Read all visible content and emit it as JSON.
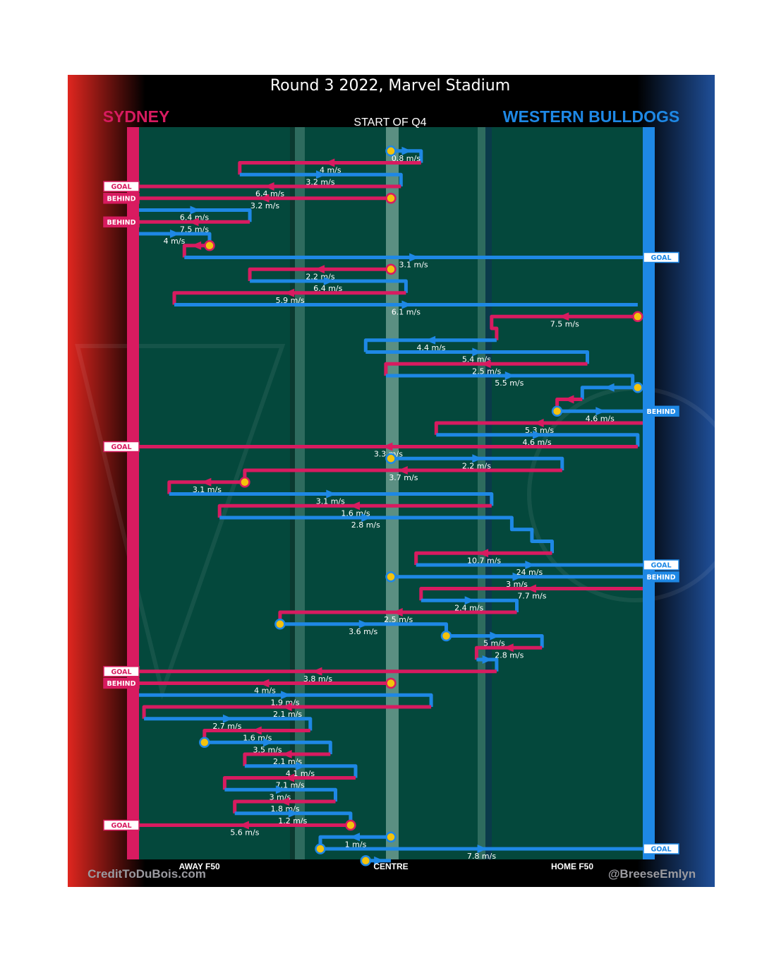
{
  "header": {
    "title": "Round 3 2022, Marvel Stadium",
    "home_team": "SYDNEY",
    "away_team": "WESTERN BULLDOGS",
    "quarter_label": "START OF Q4"
  },
  "footer": {
    "left_credit": "CreditToDuBois.com",
    "right_credit": "@BreeseEmlyn"
  },
  "colors": {
    "sydney": "#d81b60",
    "bulldogs": "#1e88e5",
    "field": "#04483c",
    "stoppage": "#f4c20d"
  },
  "chart_data": {
    "type": "chain-flow",
    "title": "Round 3 2022, Marvel Stadium",
    "subtitle": "START OF Q4",
    "x_axis": {
      "range": [
        0,
        100
      ],
      "labels": [
        {
          "x": 12,
          "label": "AWAY F50"
        },
        {
          "x": 50,
          "label": "CENTRE"
        },
        {
          "x": 86,
          "label": "HOME F50"
        }
      ]
    },
    "chains": [
      {
        "team": "BUL",
        "path": [
          [
            50,
            1
          ],
          [
            56,
            1
          ],
          [
            56,
            2
          ]
        ],
        "speed": "0.8 m/s",
        "start_marker": true
      },
      {
        "team": "SYD",
        "path": [
          [
            56,
            2
          ],
          [
            20,
            2
          ],
          [
            20,
            3
          ]
        ],
        "speed": "4 m/s"
      },
      {
        "team": "BUL",
        "path": [
          [
            20,
            3
          ],
          [
            52,
            3
          ],
          [
            52,
            4
          ]
        ],
        "speed": "3.2 m/s"
      },
      {
        "team": "SYD",
        "path": [
          [
            52,
            4
          ],
          [
            0,
            4
          ]
        ],
        "speed": "6.4 m/s",
        "outcome": "GOAL"
      },
      {
        "team": "SYD",
        "path": [
          [
            50,
            5
          ],
          [
            0,
            5
          ]
        ],
        "speed": "3.2 m/s",
        "outcome": "BEHIND",
        "start_marker": true
      },
      {
        "team": "BUL",
        "path": [
          [
            0,
            6
          ],
          [
            22,
            6
          ],
          [
            22,
            7
          ]
        ],
        "speed": "6.4 m/s"
      },
      {
        "team": "SYD",
        "path": [
          [
            22,
            7
          ],
          [
            0,
            7
          ]
        ],
        "speed": "7.5 m/s",
        "outcome": "BEHIND"
      },
      {
        "team": "BUL",
        "path": [
          [
            0,
            8
          ],
          [
            14,
            8
          ],
          [
            14,
            9
          ]
        ],
        "speed": "4 m/s"
      },
      {
        "team": "SYD",
        "path": [
          [
            14,
            9
          ],
          [
            9,
            9
          ],
          [
            9,
            10
          ]
        ],
        "speed": "",
        "start_marker": true
      },
      {
        "team": "BUL",
        "path": [
          [
            9,
            10
          ],
          [
            100,
            10
          ]
        ],
        "speed": "3.1 m/s",
        "outcome": "GOAL"
      },
      {
        "team": "SYD",
        "path": [
          [
            50,
            11
          ],
          [
            22,
            11
          ],
          [
            22,
            12
          ]
        ],
        "speed": "2.2 m/s",
        "start_marker": true
      },
      {
        "team": "BUL",
        "path": [
          [
            22,
            12
          ],
          [
            53,
            12
          ],
          [
            53,
            13
          ]
        ],
        "speed": "6.4 m/s"
      },
      {
        "team": "SYD",
        "path": [
          [
            53,
            13
          ],
          [
            7,
            13
          ],
          [
            7,
            14
          ]
        ],
        "speed": "5.9 m/s"
      },
      {
        "team": "BUL",
        "path": [
          [
            7,
            14
          ],
          [
            99,
            14
          ]
        ],
        "speed": "6.1 m/s"
      },
      {
        "team": "SYD",
        "path": [
          [
            99,
            15
          ],
          [
            70,
            15
          ],
          [
            70,
            16
          ],
          [
            71,
            16
          ],
          [
            71,
            17
          ]
        ],
        "speed": "7.5 m/s",
        "start_marker": true
      },
      {
        "team": "BUL",
        "path": [
          [
            71,
            17
          ],
          [
            45,
            17
          ],
          [
            45,
            18
          ]
        ],
        "speed": "4.4 m/s"
      },
      {
        "team": "BUL",
        "path": [
          [
            45,
            18
          ],
          [
            89,
            18
          ],
          [
            89,
            19
          ]
        ],
        "speed": "5.4 m/s"
      },
      {
        "team": "SYD",
        "path": [
          [
            89,
            19
          ],
          [
            49,
            19
          ],
          [
            49,
            20
          ]
        ],
        "speed": "2.5 m/s"
      },
      {
        "team": "BUL",
        "path": [
          [
            49,
            20
          ],
          [
            98,
            20
          ],
          [
            98,
            21
          ]
        ],
        "speed": "5.5 m/s"
      },
      {
        "team": "BUL",
        "path": [
          [
            99,
            21
          ],
          [
            88,
            21
          ],
          [
            88,
            22
          ]
        ],
        "speed": "",
        "start_marker": true
      },
      {
        "team": "SYD",
        "path": [
          [
            88,
            22
          ],
          [
            83,
            22
          ],
          [
            83,
            23
          ]
        ],
        "speed": ""
      },
      {
        "team": "BUL",
        "path": [
          [
            83,
            23
          ],
          [
            100,
            23
          ]
        ],
        "speed": "4.6 m/s",
        "outcome": "BEHIND",
        "start_marker": true
      },
      {
        "team": "SYD",
        "path": [
          [
            100,
            24
          ],
          [
            59,
            24
          ],
          [
            59,
            25
          ]
        ],
        "speed": "5.3 m/s"
      },
      {
        "team": "BUL",
        "path": [
          [
            59,
            25
          ],
          [
            99,
            25
          ],
          [
            99,
            26
          ]
        ],
        "speed": "4.6 m/s"
      },
      {
        "team": "SYD",
        "path": [
          [
            99,
            26
          ],
          [
            0,
            26
          ]
        ],
        "speed": "3.3 m/s",
        "outcome": "GOAL"
      },
      {
        "team": "BUL",
        "path": [
          [
            50,
            27
          ],
          [
            84,
            27
          ],
          [
            84,
            28
          ]
        ],
        "speed": "2.2 m/s",
        "start_marker": true
      },
      {
        "team": "SYD",
        "path": [
          [
            84,
            28
          ],
          [
            21,
            28
          ],
          [
            21,
            29
          ]
        ],
        "speed": "3.7 m/s"
      },
      {
        "team": "SYD",
        "path": [
          [
            21,
            29
          ],
          [
            6,
            29
          ],
          [
            6,
            30
          ]
        ],
        "speed": "3.1 m/s",
        "start_marker": true
      },
      {
        "team": "BUL",
        "path": [
          [
            6,
            30
          ],
          [
            70,
            30
          ],
          [
            70,
            31
          ]
        ],
        "speed": "3.1 m/s"
      },
      {
        "team": "SYD",
        "path": [
          [
            70,
            31
          ],
          [
            16,
            31
          ],
          [
            16,
            32
          ]
        ],
        "speed": "1.6 m/s"
      },
      {
        "team": "BUL",
        "path": [
          [
            16,
            32
          ],
          [
            74,
            32
          ],
          [
            74,
            33
          ],
          [
            78,
            33
          ],
          [
            78,
            34
          ],
          [
            82,
            34
          ],
          [
            82,
            35
          ]
        ],
        "speed": "2.8 m/s"
      },
      {
        "team": "SYD",
        "path": [
          [
            82,
            35
          ],
          [
            55,
            35
          ],
          [
            55,
            36
          ]
        ],
        "speed": "10.7 m/s"
      },
      {
        "team": "BUL",
        "path": [
          [
            55,
            36
          ],
          [
            100,
            36
          ]
        ],
        "speed": "24 m/s",
        "outcome": "GOAL"
      },
      {
        "team": "BUL",
        "path": [
          [
            50,
            37
          ],
          [
            100,
            37
          ]
        ],
        "speed": "3 m/s",
        "outcome": "BEHIND",
        "start_marker": true
      },
      {
        "team": "SYD",
        "path": [
          [
            100,
            38
          ],
          [
            56,
            38
          ],
          [
            56,
            39
          ]
        ],
        "speed": "7.7 m/s"
      },
      {
        "team": "BUL",
        "path": [
          [
            56,
            39
          ],
          [
            75,
            39
          ],
          [
            75,
            40
          ]
        ],
        "speed": "2.4 m/s"
      },
      {
        "team": "SYD",
        "path": [
          [
            75,
            40
          ],
          [
            28,
            40
          ],
          [
            28,
            41
          ]
        ],
        "speed": "2.5 m/s"
      },
      {
        "team": "BUL",
        "path": [
          [
            28,
            41
          ],
          [
            61,
            41
          ],
          [
            61,
            42
          ]
        ],
        "speed": "3.6 m/s",
        "start_marker": true
      },
      {
        "team": "BUL",
        "path": [
          [
            61,
            42
          ],
          [
            80,
            42
          ],
          [
            80,
            43
          ]
        ],
        "speed": "5 m/s",
        "start_marker": true
      },
      {
        "team": "SYD",
        "path": [
          [
            80,
            43
          ],
          [
            67,
            43
          ],
          [
            67,
            44
          ]
        ],
        "speed": "2.8 m/s"
      },
      {
        "team": "BUL",
        "path": [
          [
            67,
            44
          ],
          [
            71,
            44
          ],
          [
            71,
            45
          ]
        ],
        "speed": ""
      },
      {
        "team": "SYD",
        "path": [
          [
            71,
            45
          ],
          [
            0,
            45
          ]
        ],
        "speed": "3.8 m/s",
        "outcome": "GOAL"
      },
      {
        "team": "SYD",
        "path": [
          [
            50,
            46
          ],
          [
            0,
            46
          ]
        ],
        "speed": "4 m/s",
        "outcome": "BEHIND",
        "start_marker": true
      },
      {
        "team": "BUL",
        "path": [
          [
            0,
            47
          ],
          [
            58,
            47
          ],
          [
            58,
            48
          ]
        ],
        "speed": "1.9 m/s"
      },
      {
        "team": "SYD",
        "path": [
          [
            58,
            48
          ],
          [
            1,
            48
          ],
          [
            1,
            49
          ]
        ],
        "speed": "2.1 m/s"
      },
      {
        "team": "BUL",
        "path": [
          [
            1,
            49
          ],
          [
            34,
            49
          ],
          [
            34,
            50
          ]
        ],
        "speed": "2.7 m/s"
      },
      {
        "team": "SYD",
        "path": [
          [
            34,
            50
          ],
          [
            13,
            50
          ],
          [
            13,
            51
          ]
        ],
        "speed": "1.6 m/s"
      },
      {
        "team": "BUL",
        "path": [
          [
            13,
            51
          ],
          [
            38,
            51
          ],
          [
            38,
            52
          ]
        ],
        "speed": "3.5 m/s",
        "start_marker": true
      },
      {
        "team": "SYD",
        "path": [
          [
            38,
            52
          ],
          [
            21,
            52
          ],
          [
            21,
            53
          ]
        ],
        "speed": "2.1 m/s"
      },
      {
        "team": "BUL",
        "path": [
          [
            21,
            53
          ],
          [
            43,
            53
          ],
          [
            43,
            54
          ]
        ],
        "speed": "4.1 m/s"
      },
      {
        "team": "SYD",
        "path": [
          [
            43,
            54
          ],
          [
            17,
            54
          ],
          [
            17,
            55
          ]
        ],
        "speed": "7.1 m/s"
      },
      {
        "team": "BUL",
        "path": [
          [
            17,
            55
          ],
          [
            39,
            55
          ],
          [
            39,
            56
          ]
        ],
        "speed": "3 m/s"
      },
      {
        "team": "SYD",
        "path": [
          [
            39,
            56
          ],
          [
            19,
            56
          ],
          [
            19,
            57
          ]
        ],
        "speed": "1.8 m/s"
      },
      {
        "team": "BUL",
        "path": [
          [
            19,
            57
          ],
          [
            42,
            57
          ],
          [
            42,
            58
          ]
        ],
        "speed": "1.2 m/s"
      },
      {
        "team": "SYD",
        "path": [
          [
            42,
            58
          ],
          [
            0,
            58
          ]
        ],
        "speed": "5.6 m/s",
        "outcome": "GOAL",
        "start_marker": true
      },
      {
        "team": "BUL",
        "path": [
          [
            50,
            59
          ],
          [
            36,
            59
          ],
          [
            36,
            60
          ]
        ],
        "speed": "1 m/s",
        "start_marker": true
      },
      {
        "team": "BUL",
        "path": [
          [
            36,
            60
          ],
          [
            100,
            60
          ]
        ],
        "speed": "7.8 m/s",
        "outcome": "GOAL",
        "start_marker": true
      },
      {
        "team": "BUL",
        "path": [
          [
            45,
            61
          ],
          [
            50,
            61
          ]
        ],
        "speed": "",
        "start_marker": true
      }
    ]
  }
}
